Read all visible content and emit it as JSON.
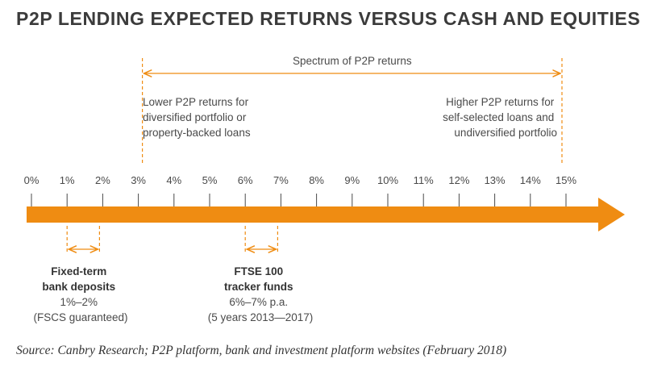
{
  "title": "P2P LENDING EXPECTED RETURNS VERSUS CASH AND EQUITIES",
  "ticks": [
    "0%",
    "1%",
    "2%",
    "3%",
    "4%",
    "5%",
    "6%",
    "7%",
    "8%",
    "9%",
    "10%",
    "11%",
    "12%",
    "13%",
    "14%",
    "15%"
  ],
  "spectrum": {
    "label": "Spectrum of P2P returns",
    "from": 3,
    "to": 15
  },
  "lower_note": [
    "Lower P2P returns for",
    "diversified portfolio or",
    "property-backed loans"
  ],
  "higher_note": [
    "Higher P2P returns for",
    "self-selected loans and",
    "undiversified portfolio"
  ],
  "fixed_term": {
    "from": 1,
    "to": 2,
    "name_lines": [
      "Fixed-term",
      "bank deposits"
    ],
    "detail_lines": [
      "1%–2%",
      "(FSCS guaranteed)"
    ]
  },
  "ftse": {
    "from": 6,
    "to": 7,
    "name_lines": [
      "FTSE 100",
      "tracker funds"
    ],
    "detail_lines": [
      "6%–7% p.a.",
      "(5 years 2013—2017)"
    ]
  },
  "source": "Source: Canbry Research; P2P platform, bank and investment platform websites (February 2018)",
  "colors": {
    "orange": "#ef8c12",
    "text": "#4a4a4a"
  }
}
